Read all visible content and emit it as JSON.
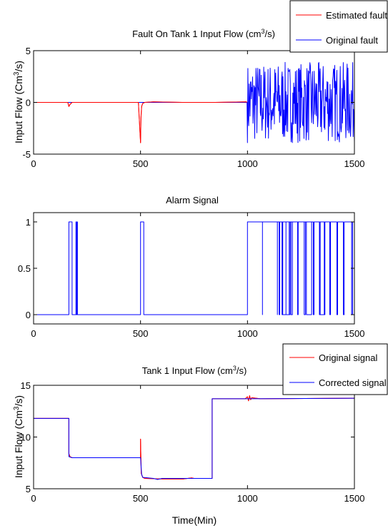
{
  "chart_data": [
    {
      "type": "line",
      "title": "Fault On Tank 1 Input Flow (cm",
      "title_sup": "3",
      "title_tail": "/s)",
      "ylabel": "Input Flow (Cm",
      "ylabel_sup": "3",
      "ylabel_tail": "/s)",
      "xlabel": "",
      "xlim": [
        0,
        1500
      ],
      "ylim": [
        -5,
        5
      ],
      "xticks": [
        0,
        500,
        1000,
        1500
      ],
      "yticks": [
        -5,
        0,
        5
      ],
      "xtick_labels": [
        "0",
        "500",
        "1000",
        "1500"
      ],
      "ytick_labels": [
        "-5",
        "0",
        "5"
      ],
      "grid": false,
      "legend_position": "top-right",
      "series": [
        {
          "name": "Estimated fault",
          "color": "#ff0000",
          "x": [
            0,
            160,
            165,
            170,
            180,
            200,
            350,
            490,
            500,
            502,
            505,
            510,
            520,
            560,
            700,
            850,
            995,
            998
          ],
          "y": [
            0,
            0,
            -0.4,
            -0.2,
            0,
            0,
            0,
            0,
            -3.9,
            -1.5,
            -0.4,
            -0.1,
            0,
            0.05,
            0,
            0,
            0.05,
            0
          ]
        },
        {
          "name": "Original fault",
          "color": "#0000ff",
          "x": [
            0,
            998
          ],
          "y": [
            0,
            0
          ],
          "noise_from": 1000,
          "noise_to": 1500,
          "noise_amplitude": 3.9
        }
      ]
    },
    {
      "type": "line",
      "title": "Alarm Signal",
      "xlabel": "",
      "ylabel": "",
      "xlim": [
        0,
        1500
      ],
      "ylim": [
        -0.1,
        1.1
      ],
      "xticks": [
        0,
        500,
        1000,
        1500
      ],
      "yticks": [
        0,
        0.5,
        1
      ],
      "xtick_labels": [
        "0",
        "500",
        "1000",
        "1500"
      ],
      "ytick_labels": [
        "0",
        "0.5",
        "1"
      ],
      "grid": false,
      "series": [
        {
          "color": "#0000ff",
          "pulses": [
            [
              165,
              180
            ],
            [
              198,
              200
            ],
            [
              203,
              205
            ],
            [
              500,
              515
            ],
            [
              1000,
              1070
            ],
            [
              1070,
              1140
            ],
            [
              1165,
              1180
            ],
            [
              1195,
              1210
            ],
            [
              1265,
              1300
            ],
            [
              1340,
              1360
            ]
          ],
          "dense_from": 1140,
          "dense_to": 1500
        }
      ]
    },
    {
      "type": "line",
      "title": "Tank 1 Input Flow (cm",
      "title_sup": "3",
      "title_tail": "/s)",
      "ylabel": "Input Flow (Cm",
      "ylabel_sup": "3",
      "ylabel_tail": "/s)",
      "xlabel": "Time(Min)",
      "xlim": [
        0,
        1500
      ],
      "ylim": [
        5,
        15
      ],
      "xticks": [
        0,
        500,
        1000,
        1500
      ],
      "yticks": [
        5,
        10,
        15
      ],
      "xtick_labels": [
        "0",
        "500",
        "1000",
        "1500"
      ],
      "ytick_labels": [
        "5",
        "10",
        "15"
      ],
      "grid": false,
      "legend_position": "top-right",
      "series": [
        {
          "name": "Original signal",
          "color": "#ff0000",
          "x": [
            0,
            165,
            165,
            170,
            180,
            200,
            498,
            500,
            500,
            503,
            510,
            520,
            600,
            700,
            740,
            750,
            835,
            835,
            990,
            1000,
            1005,
            1010,
            1015,
            1020,
            1060,
            1500
          ],
          "y": [
            11.8,
            11.8,
            8.4,
            8.1,
            8.0,
            8.0,
            8.0,
            8.0,
            9.8,
            6.5,
            6.1,
            6.0,
            5.95,
            5.95,
            6.05,
            6.0,
            6.0,
            13.7,
            13.7,
            13.9,
            13.5,
            14.0,
            13.6,
            13.8,
            13.7,
            13.75
          ]
        },
        {
          "name": "Corrected signal",
          "color": "#0000ff",
          "x": [
            0,
            165,
            165,
            180,
            200,
            498,
            500,
            500,
            505,
            510,
            560,
            580,
            600,
            835,
            835,
            1000,
            1500
          ],
          "y": [
            11.8,
            11.8,
            8.1,
            8.0,
            8.0,
            8.0,
            8.0,
            8.0,
            6.4,
            6.1,
            6.0,
            5.9,
            6.0,
            6.0,
            13.7,
            13.7,
            13.75
          ]
        }
      ]
    }
  ]
}
